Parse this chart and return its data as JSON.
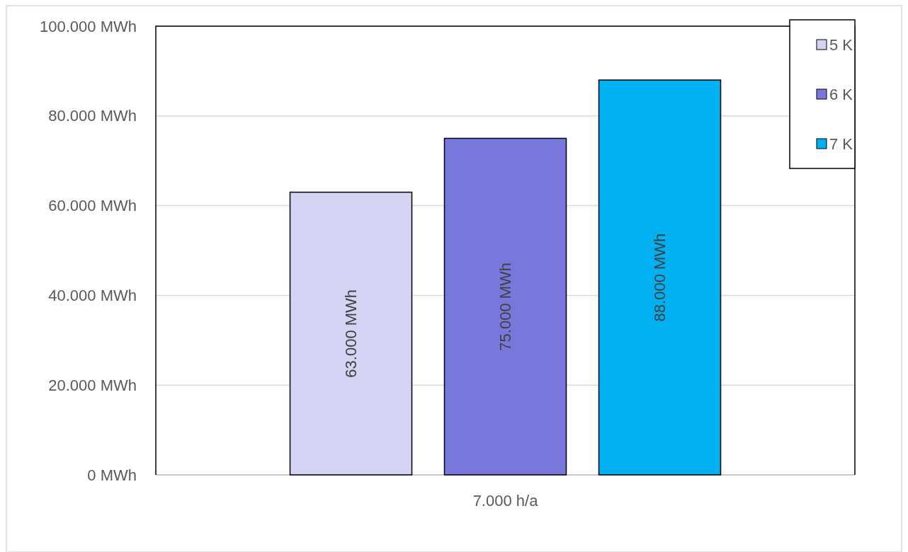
{
  "chart_data": {
    "type": "bar",
    "categories": [
      "7.000 h/a"
    ],
    "series": [
      {
        "name": "5 K",
        "color": "#d3d3f3",
        "values": [
          63000
        ],
        "value_labels": [
          "63.000 MWh"
        ]
      },
      {
        "name": "6 K",
        "color": "#7878dc",
        "values": [
          75000
        ],
        "value_labels": [
          "75.000 MWh"
        ]
      },
      {
        "name": "7 K",
        "color": "#00b0f0",
        "values": [
          88000
        ],
        "value_labels": [
          "88.000 MWh"
        ]
      }
    ],
    "ylim": [
      0,
      100000
    ],
    "yticks": [
      {
        "value": 0,
        "label": "0 MWh"
      },
      {
        "value": 20000,
        "label": "20.000 MWh"
      },
      {
        "value": 40000,
        "label": "40.000 MWh"
      },
      {
        "value": 60000,
        "label": "60.000 MWh"
      },
      {
        "value": 80000,
        "label": "80.000 MWh"
      },
      {
        "value": 100000,
        "label": "100.000 MWh"
      }
    ],
    "grid": "y",
    "legend": "top right"
  }
}
